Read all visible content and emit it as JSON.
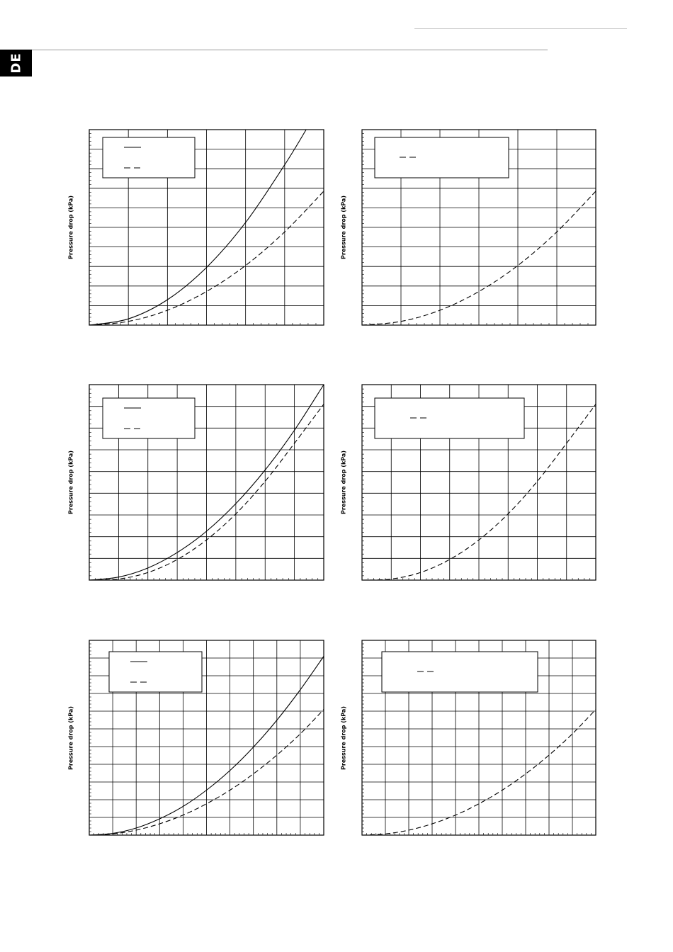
{
  "page": {
    "language_tab": "DE"
  },
  "chart_data": [
    {
      "type": "line",
      "ylabel": "Pressure drop (kPa)",
      "xlim": [
        0,
        6
      ],
      "ylim": [
        0,
        10
      ],
      "x_major": 1,
      "y_major": 1,
      "series": [
        {
          "style": "solid",
          "x": [
            0,
            1,
            2,
            3,
            4,
            5,
            5.55
          ],
          "y": [
            0,
            0.32,
            1.3,
            2.95,
            5.25,
            8.2,
            10
          ]
        },
        {
          "style": "dashed",
          "x": [
            0,
            1,
            2,
            3,
            4,
            5,
            6
          ],
          "y": [
            0,
            0.19,
            0.76,
            1.72,
            3.05,
            4.77,
            6.85
          ]
        }
      ],
      "legend": {
        "position": "top-left",
        "entries": [
          "",
          ""
        ]
      }
    },
    {
      "type": "line",
      "ylabel": "Pressure drop (kPa)",
      "xlim": [
        0,
        6
      ],
      "ylim": [
        0,
        10
      ],
      "x_major": 1,
      "y_major": 1,
      "series": [
        {
          "style": "dashed",
          "x": [
            0,
            1,
            2,
            3,
            4,
            5,
            6
          ],
          "y": [
            0,
            0.19,
            0.76,
            1.72,
            3.05,
            4.77,
            6.85
          ]
        }
      ],
      "legend": {
        "position": "top-left",
        "entries": [
          ""
        ]
      }
    },
    {
      "type": "line",
      "ylabel": "Pressure drop (kPa)",
      "xlim": [
        0,
        8
      ],
      "ylim": [
        0,
        9
      ],
      "x_major": 1,
      "y_major": 1,
      "series": [
        {
          "style": "solid",
          "x": [
            0,
            1,
            2,
            3,
            4,
            5,
            6,
            7,
            8
          ],
          "y": [
            0,
            0.14,
            0.56,
            1.27,
            2.25,
            3.52,
            5.07,
            6.9,
            9
          ]
        },
        {
          "style": "dashed",
          "x": [
            0,
            1,
            2,
            3,
            4,
            5,
            6,
            7,
            8
          ],
          "y": [
            0,
            0.05,
            0.35,
            0.95,
            1.85,
            3.05,
            4.55,
            6.3,
            8.1
          ]
        }
      ],
      "legend": {
        "position": "top-left",
        "entries": [
          "",
          ""
        ]
      }
    },
    {
      "type": "line",
      "ylabel": "Pressure drop (kPa)",
      "xlim": [
        0,
        8
      ],
      "ylim": [
        0,
        9
      ],
      "x_major": 1,
      "y_major": 1,
      "series": [
        {
          "style": "dashed",
          "x": [
            0,
            1,
            2,
            3,
            4,
            5,
            6,
            7,
            8
          ],
          "y": [
            0,
            0.05,
            0.35,
            0.95,
            1.85,
            3.05,
            4.55,
            6.3,
            8.1
          ]
        }
      ],
      "legend": {
        "position": "top-left",
        "entries": [
          ""
        ]
      }
    },
    {
      "type": "line",
      "ylabel": "Pressure drop (kPa)",
      "xlim": [
        0,
        10
      ],
      "ylim": [
        0,
        11
      ],
      "x_major": 1,
      "y_major": 1,
      "series": [
        {
          "style": "solid",
          "x": [
            0,
            1,
            2,
            3,
            4,
            5,
            6,
            7,
            8,
            9,
            10
          ],
          "y": [
            0,
            0.1,
            0.4,
            0.92,
            1.62,
            2.54,
            3.65,
            4.97,
            6.49,
            8.21,
            10.1
          ]
        },
        {
          "style": "dashed",
          "x": [
            0,
            1,
            2,
            3,
            4,
            5,
            6,
            7,
            8,
            9,
            10
          ],
          "y": [
            0,
            0.07,
            0.28,
            0.64,
            1.13,
            1.77,
            2.54,
            3.46,
            4.52,
            5.72,
            7.1
          ]
        }
      ],
      "legend": {
        "position": "top-left",
        "entries": [
          "",
          ""
        ]
      }
    },
    {
      "type": "line",
      "ylabel": "Pressure drop (kPa)",
      "xlim": [
        0,
        10
      ],
      "ylim": [
        0,
        11
      ],
      "x_major": 1,
      "y_major": 1,
      "series": [
        {
          "style": "dashed",
          "x": [
            0,
            1,
            2,
            3,
            4,
            5,
            6,
            7,
            8,
            9,
            10
          ],
          "y": [
            0,
            0.07,
            0.28,
            0.64,
            1.13,
            1.77,
            2.54,
            3.46,
            4.52,
            5.72,
            7.1
          ]
        }
      ],
      "legend": {
        "position": "top-left",
        "entries": [
          ""
        ]
      }
    }
  ]
}
